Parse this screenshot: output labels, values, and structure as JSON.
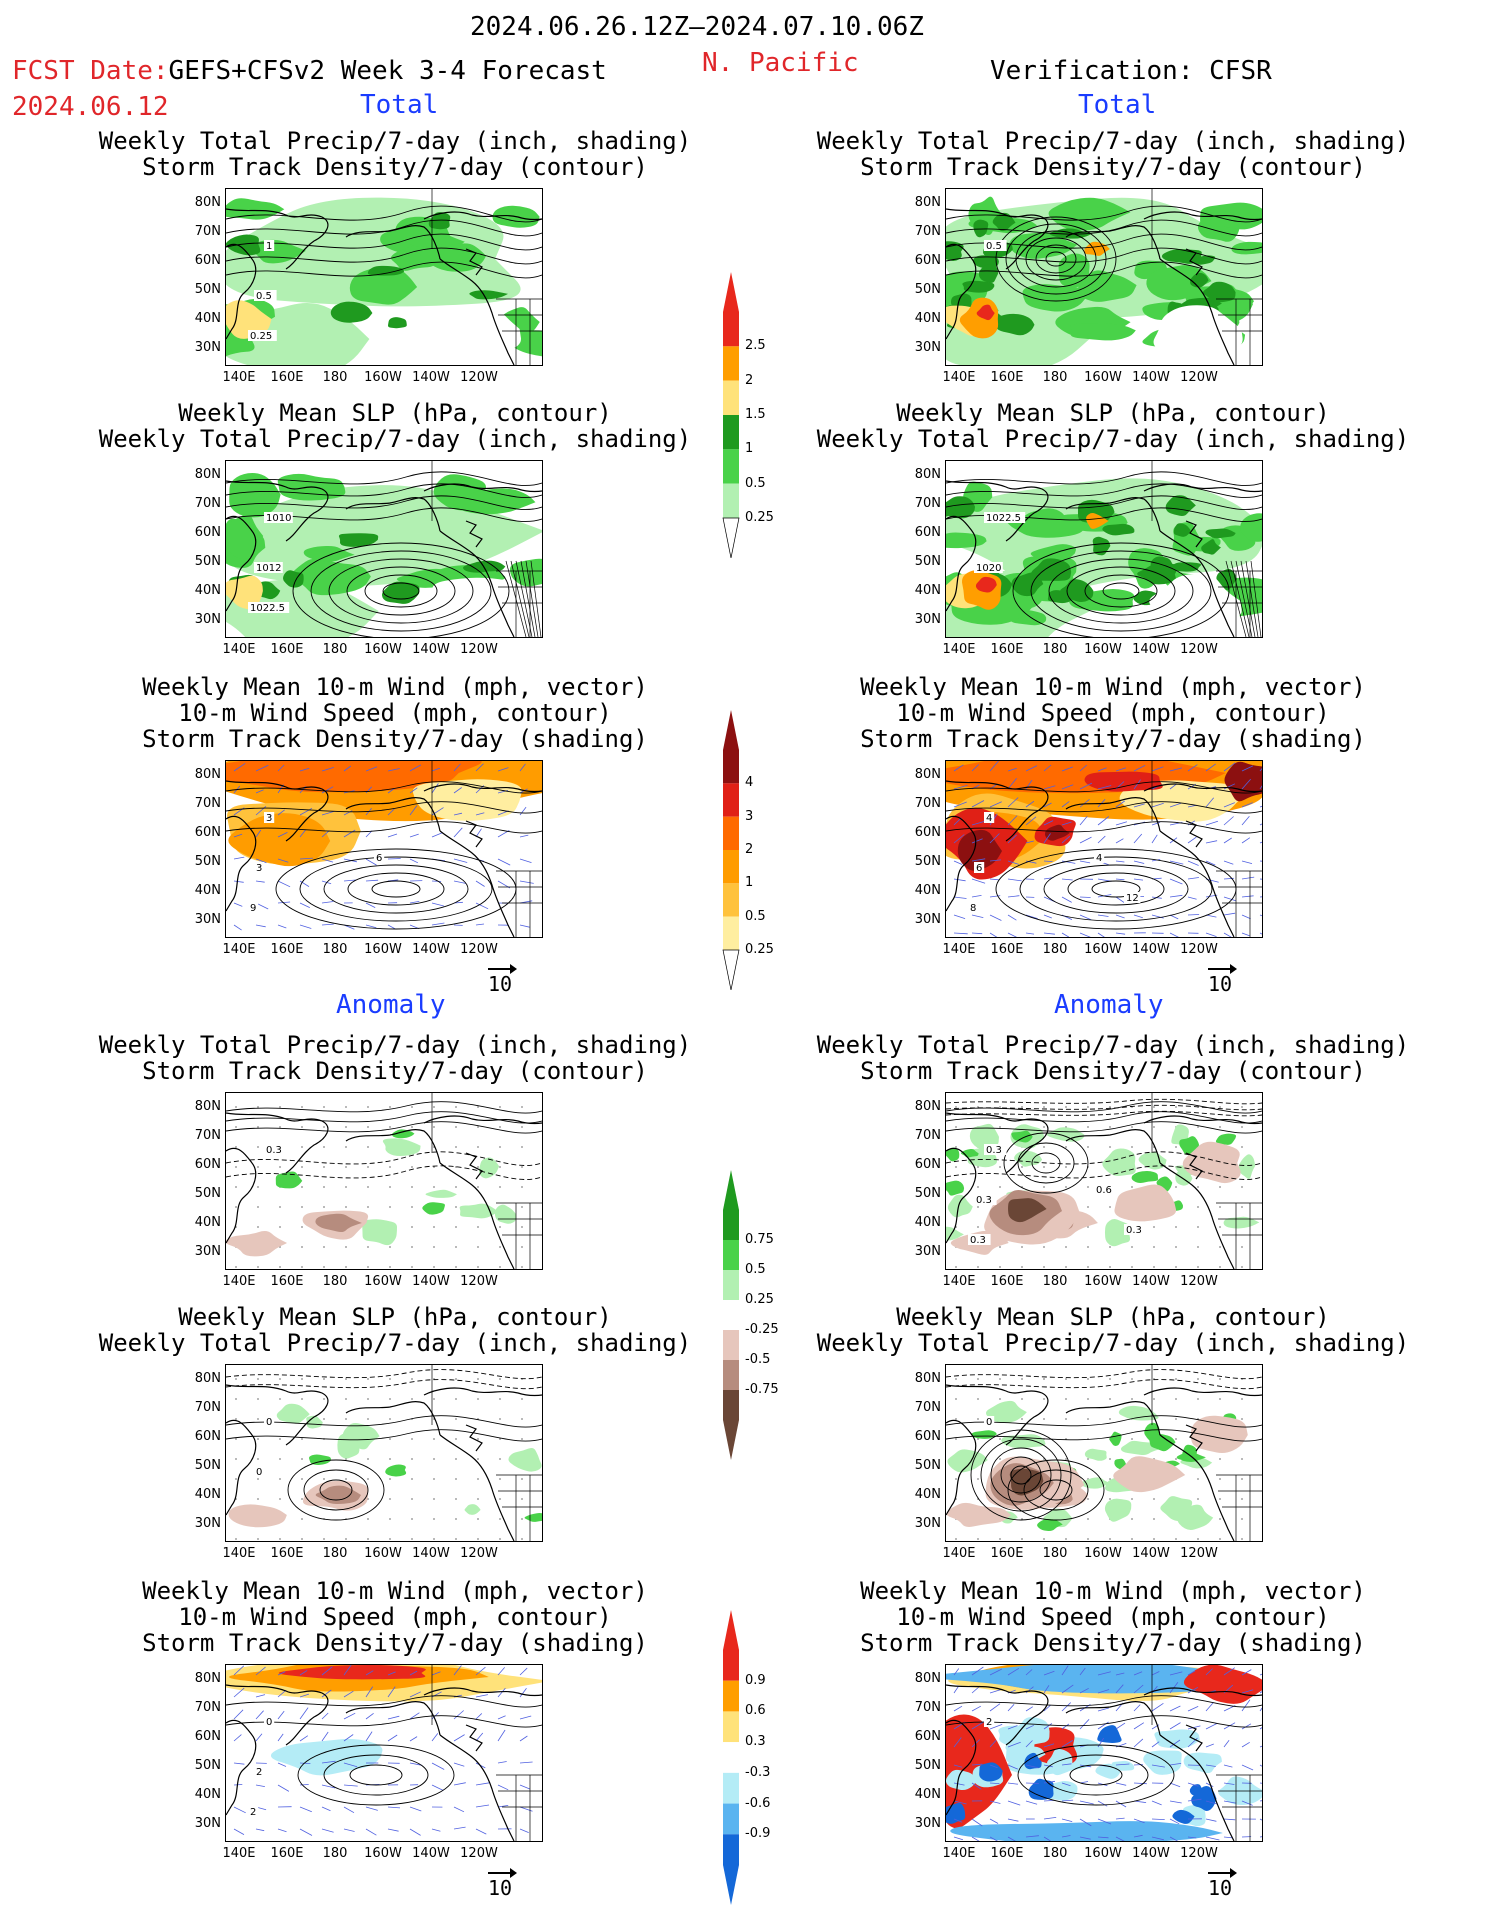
{
  "header": {
    "date_range": "2024.06.26.12Z–2024.07.10.06Z",
    "fcst_label": "FCST Date:",
    "model_label": "GEFS+CFSv2 Week 3-4 Forecast",
    "fcst_date": "2024.06.12",
    "region": "N. Pacific",
    "verification": "Verification: CFSR"
  },
  "sections": {
    "total": "Total",
    "anomaly": "Anomaly"
  },
  "axis": {
    "lat_labels": [
      "80N",
      "70N",
      "60N",
      "50N",
      "40N",
      "30N"
    ],
    "lon_labels": [
      "140E",
      "160E",
      "180",
      "160W",
      "140W",
      "120W"
    ]
  },
  "vector_ref": "10",
  "titles": {
    "precip_storm": [
      "Weekly Total Precip/7-day (inch, shading)",
      "Storm Track Density/7-day (contour)"
    ],
    "slp_precip": [
      "Weekly Mean SLP (hPa, contour)",
      "Weekly Total Precip/7-day (inch, shading)"
    ],
    "wind_storm": [
      "Weekly Mean 10-m Wind (mph, vector)",
      "10-m Wind Speed (mph, contour)",
      "Storm Track Density/7-day (shading)"
    ]
  },
  "colorbars": {
    "total_precip": {
      "labels": [
        "2.5",
        "2",
        "1.5",
        "1",
        "0.5",
        "0.25"
      ],
      "colors": [
        "#e8281c",
        "#ff9e00",
        "#ffe27a",
        "#1f9a1f",
        "#49d249",
        "#b2f0b2"
      ]
    },
    "total_storm": {
      "labels": [
        "4",
        "3",
        "2",
        "1",
        "0.5",
        "0.25"
      ],
      "colors": [
        "#8c1010",
        "#e02016",
        "#ff6a00",
        "#ff9c00",
        "#ffc23c",
        "#ffeea0"
      ]
    },
    "anom_precip": {
      "labels": [
        "0.75",
        "0.5",
        "0.25",
        "-0.25",
        "-0.5",
        "-0.75"
      ],
      "colors": [
        "#1f9a1f",
        "#49d249",
        "#b2f0b2",
        "#ffffff",
        "#e6c6bc",
        "#b68c7e",
        "#6a4636"
      ]
    },
    "anom_storm": {
      "labels": [
        "0.9",
        "0.6",
        "0.3",
        "-0.3",
        "-0.6",
        "-0.9"
      ],
      "colors": [
        "#e8281c",
        "#ff9e00",
        "#ffe27a",
        "#ffffff",
        "#b4ecf6",
        "#5ab4f0",
        "#1468d8"
      ]
    }
  },
  "panel_labels": {
    "fc_total_1": [
      "1",
      "0.5",
      "0.25"
    ],
    "ob_total_1": [
      "0.5"
    ],
    "fc_total_2": [
      "1010",
      "1012",
      "1022.5"
    ],
    "ob_total_2": [
      "1022.5",
      "1020"
    ],
    "fc_total_3": [
      "3",
      "3",
      "9",
      "6"
    ],
    "ob_total_3": [
      "4",
      "6",
      "8",
      "4",
      "12"
    ],
    "fc_anom_1": [
      "0.3"
    ],
    "ob_anom_1": [
      "0.3",
      "0.3",
      "0.3",
      "0.6",
      "0.3"
    ],
    "fc_anom_2": [
      "0",
      "0"
    ],
    "ob_anom_2": [
      "0"
    ],
    "fc_anom_3": [
      "0",
      "2",
      "2"
    ],
    "ob_anom_3": [
      "2"
    ]
  }
}
